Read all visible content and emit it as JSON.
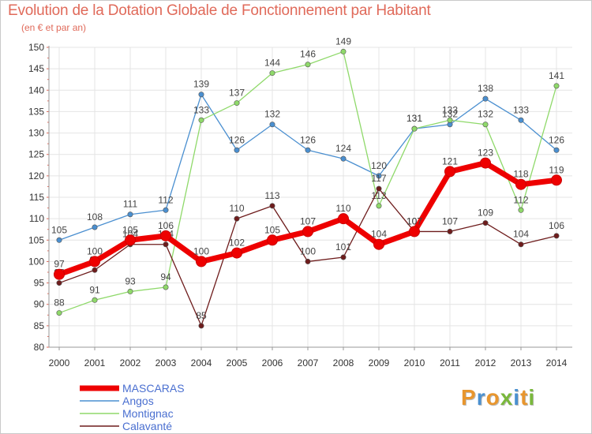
{
  "header": {
    "title": "Evolution de la Dotation Globale de Fonctionnement par Habitant",
    "subtitle": "(en € et par an)"
  },
  "logo": {
    "text": "Proxiti",
    "colors": [
      "#e8962e",
      "#4a90d0",
      "#e8962e",
      "#7ab83c",
      "#4a90d0",
      "#e8962e",
      "#7ab83c"
    ]
  },
  "chart_data": {
    "type": "line",
    "title": "Evolution de la Dotation Globale de Fonctionnement par Habitant",
    "subtitle": "(en € et par an)",
    "x": [
      "2000",
      "2001",
      "2002",
      "2003",
      "2004",
      "2005",
      "2006",
      "2007",
      "2008",
      "2009",
      "2010",
      "2011",
      "2012",
      "2013",
      "2014"
    ],
    "ylim": [
      80,
      150
    ],
    "yticks": [
      80,
      85,
      90,
      95,
      100,
      105,
      110,
      115,
      120,
      125,
      130,
      135,
      140,
      145,
      150
    ],
    "grid": true,
    "legend": "bottom-left",
    "series": [
      {
        "name": "Angos",
        "color": "#4a8fd0",
        "values": [
          105,
          108,
          111,
          112,
          139,
          126,
          132,
          126,
          124,
          120,
          131,
          132,
          138,
          133,
          126
        ]
      },
      {
        "name": "Montignac",
        "color": "#8fd96a",
        "values": [
          88,
          91,
          93,
          94,
          133,
          137,
          144,
          146,
          149,
          113,
          131,
          133,
          132,
          112,
          141
        ]
      },
      {
        "name": "Calavanté",
        "color": "#6e1c1c",
        "values": [
          95,
          98,
          104,
          104,
          85,
          110,
          113,
          100,
          101,
          117,
          107,
          107,
          109,
          104,
          106
        ]
      },
      {
        "name": "MASCARAS",
        "color": "#ee0000",
        "values": [
          97,
          100,
          105,
          106,
          100,
          102,
          105,
          107,
          110,
          104,
          107,
          121,
          123,
          118,
          119
        ]
      }
    ],
    "legend_order": [
      "MASCARAS",
      "Angos",
      "Montignac",
      "Calavanté"
    ]
  }
}
